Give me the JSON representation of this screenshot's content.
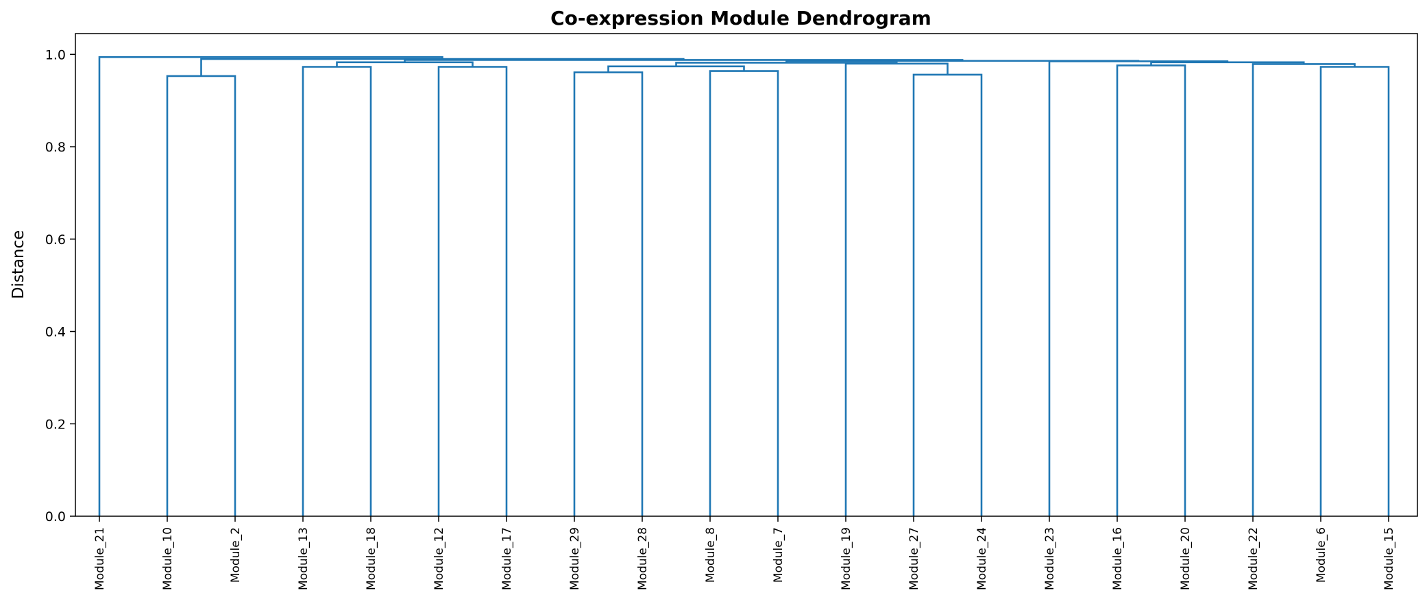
{
  "chart_data": {
    "type": "dendrogram",
    "title": "Co-expression Module Dendrogram",
    "xlabel": "",
    "ylabel": "Distance",
    "ylim": [
      0,
      1.045
    ],
    "yticks": [
      "0.0",
      "0.2",
      "0.4",
      "0.6",
      "0.8",
      "1.0"
    ],
    "grid": false,
    "leaves": [
      "Module_21",
      "Module_10",
      "Module_2",
      "Module_13",
      "Module_18",
      "Module_12",
      "Module_17",
      "Module_29",
      "Module_28",
      "Module_8",
      "Module_7",
      "Module_19",
      "Module_27",
      "Module_24",
      "Module_23",
      "Module_16",
      "Module_20",
      "Module_22",
      "Module_6",
      "Module_15"
    ],
    "merges": [
      {
        "id": "m1",
        "left": "Module_10",
        "right": "Module_2",
        "height": 0.953
      },
      {
        "id": "m2",
        "left": "Module_13",
        "right": "Module_18",
        "height": 0.973
      },
      {
        "id": "m3",
        "left": "Module_12",
        "right": "Module_17",
        "height": 0.973
      },
      {
        "id": "m4",
        "left": "Module_29",
        "right": "Module_28",
        "height": 0.961
      },
      {
        "id": "m5",
        "left": "Module_8",
        "right": "Module_7",
        "height": 0.964
      },
      {
        "id": "m6",
        "left": "Module_27",
        "right": "Module_24",
        "height": 0.956
      },
      {
        "id": "m7",
        "left": "Module_16",
        "right": "Module_20",
        "height": 0.976
      },
      {
        "id": "m8",
        "left": "Module_6",
        "right": "Module_15",
        "height": 0.973
      },
      {
        "id": "m9",
        "left": "m4",
        "right": "m5",
        "height": 0.974
      },
      {
        "id": "m10",
        "left": "Module_19",
        "right": "m6",
        "height": 0.98
      },
      {
        "id": "m11",
        "left": "Module_22",
        "right": "m8",
        "height": 0.979
      },
      {
        "id": "m12",
        "left": "m9",
        "right": "m10",
        "height": 0.982
      },
      {
        "id": "m13",
        "left": "m7",
        "right": "m11",
        "height": 0.983
      },
      {
        "id": "m14",
        "left": "m2",
        "right": "m3",
        "height": 0.983
      },
      {
        "id": "m15",
        "left": "Module_23",
        "right": "m13",
        "height": 0.985
      },
      {
        "id": "m16",
        "left": "m12",
        "right": "m15",
        "height": 0.986
      },
      {
        "id": "m17",
        "left": "m14",
        "right": "m16",
        "height": 0.988
      },
      {
        "id": "m18",
        "left": "m1",
        "right": "m17",
        "height": 0.99
      },
      {
        "id": "m19",
        "left": "Module_21",
        "right": "m18",
        "height": 0.994
      }
    ],
    "link_color": "#1f77b4"
  }
}
